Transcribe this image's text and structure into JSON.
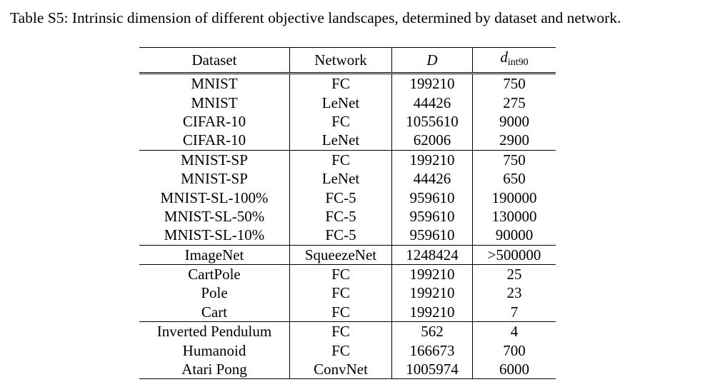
{
  "caption": "Table S5: Intrinsic dimension of different objective landscapes, determined by dataset and network.",
  "table": {
    "headers": [
      "Dataset",
      "Network",
      "D",
      {
        "base": "d",
        "sub": "int90"
      }
    ],
    "groups": [
      {
        "rows": [
          [
            "MNIST",
            "FC",
            199210,
            750
          ],
          [
            "MNIST",
            "LeNet",
            44426,
            275
          ],
          [
            "CIFAR-10",
            "FC",
            1055610,
            9000
          ],
          [
            "CIFAR-10",
            "LeNet",
            62006,
            2900
          ]
        ]
      },
      {
        "rows": [
          [
            "MNIST-SP",
            "FC",
            199210,
            750
          ],
          [
            "MNIST-SP",
            "LeNet",
            44426,
            650
          ],
          [
            "MNIST-SL-100%",
            "FC-5",
            959610,
            190000
          ],
          [
            "MNIST-SL-50%",
            "FC-5",
            959610,
            130000
          ],
          [
            "MNIST-SL-10%",
            "FC-5",
            959610,
            90000
          ]
        ]
      },
      {
        "rows": [
          [
            "ImageNet",
            "SqueezeNet",
            1248424,
            ">500000"
          ]
        ]
      },
      {
        "rows": [
          [
            "CartPole",
            "FC",
            199210,
            25
          ],
          [
            "Pole",
            "FC",
            199210,
            23
          ],
          [
            "Cart",
            "FC",
            199210,
            7
          ]
        ]
      },
      {
        "rows": [
          [
            "Inverted Pendulum",
            "FC",
            562,
            4
          ],
          [
            "Humanoid",
            "FC",
            166673,
            700
          ],
          [
            "Atari Pong",
            "ConvNet",
            1005974,
            6000
          ]
        ]
      }
    ]
  }
}
